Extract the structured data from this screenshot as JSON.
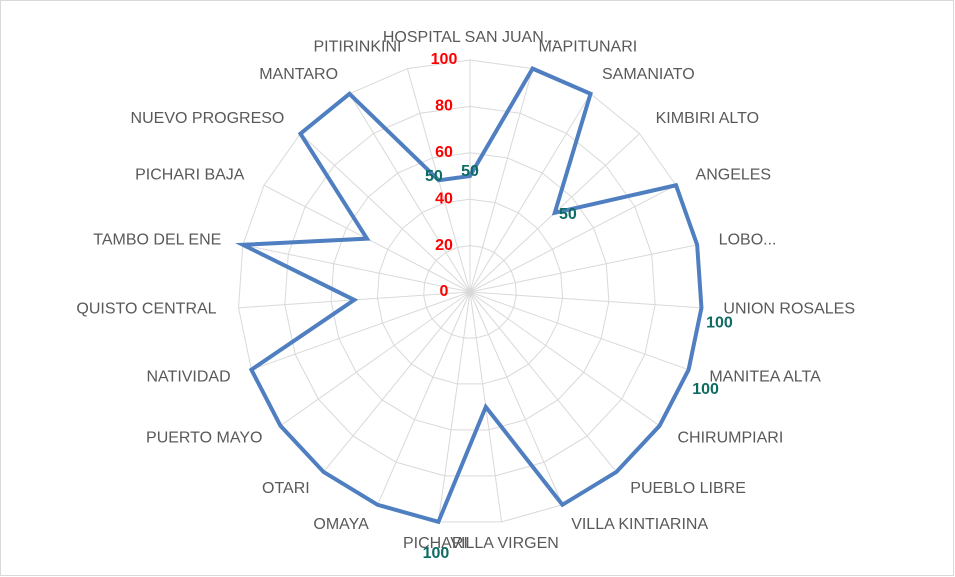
{
  "chart_data": {
    "type": "radar",
    "categories": [
      "HOSPITAL SAN JUAN...",
      "MAPITUNARI",
      "SAMANIATO",
      "KIMBIRI ALTO",
      "ANGELES",
      "LOBO...",
      "UNION ROSALES",
      "MANITEA ALTA",
      "CHIRUMPIARI",
      "PUEBLO LIBRE",
      "VILLA KINTIARINA",
      "VILLA VIRGEN",
      "PICHARI",
      "OMAYA",
      "OTARI",
      "PUERTO MAYO",
      "NATIVIDAD",
      "QUISTO CENTRAL",
      "TAMBO DEL ENE",
      "PICHARI BAJA",
      "NUEVO PROGRESO",
      "MANTARO",
      "PITIRINKINI"
    ],
    "values": [
      50,
      100,
      100,
      50,
      100,
      100,
      100,
      100,
      100,
      100,
      100,
      50,
      100,
      100,
      100,
      100,
      100,
      50,
      100,
      50,
      100,
      100,
      50
    ],
    "value_labels": [
      "50",
      null,
      null,
      "50",
      null,
      null,
      "100",
      "100",
      null,
      null,
      null,
      null,
      "100",
      null,
      null,
      null,
      null,
      null,
      null,
      null,
      null,
      null,
      "50"
    ],
    "color": "#4f7fc0",
    "ylim": [
      0,
      100
    ],
    "yticks": [
      0,
      20,
      40,
      60,
      80,
      100
    ],
    "grid": true
  }
}
